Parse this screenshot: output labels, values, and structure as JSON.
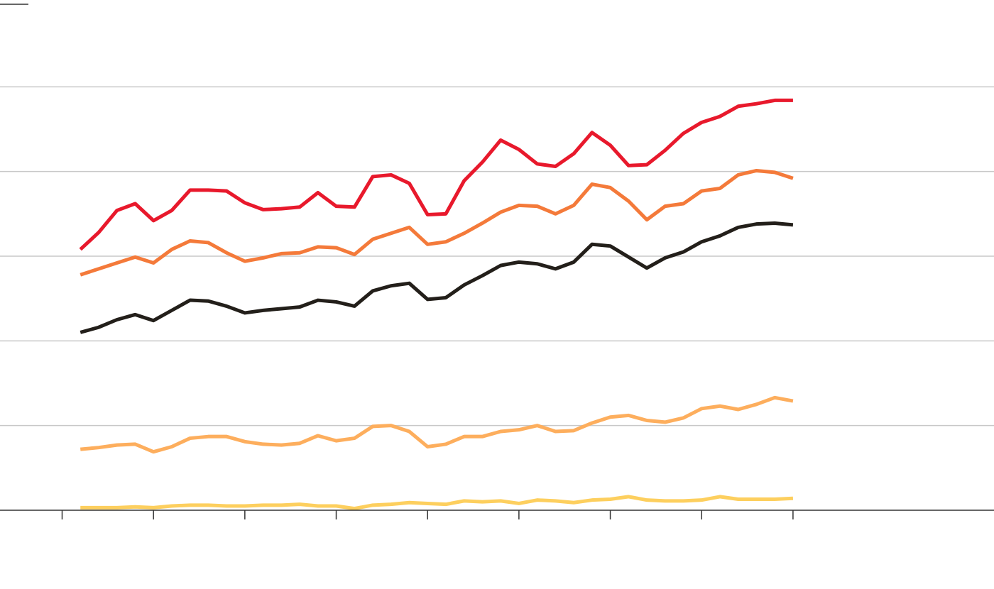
{
  "chart_data": {
    "type": "line",
    "x": [
      1,
      2,
      3,
      4,
      5,
      6,
      7,
      8,
      9,
      10,
      11,
      12,
      13,
      14,
      15,
      16,
      17,
      18,
      19,
      20,
      21,
      22,
      23,
      24,
      25,
      26,
      27,
      28,
      29,
      30,
      31,
      32,
      33,
      34,
      35,
      36,
      37,
      38,
      39,
      40
    ],
    "xlim": [
      -3.4,
      51
    ],
    "xticks": [
      0,
      5,
      10,
      15,
      20,
      25,
      30,
      35,
      40
    ],
    "ylim": [
      0,
      6
    ],
    "yticks": [
      0,
      1,
      2,
      3,
      4,
      5
    ],
    "grid": true,
    "series": [
      {
        "color": "#e8192c",
        "values": [
          3.08,
          3.28,
          3.54,
          3.62,
          3.42,
          3.54,
          3.78,
          3.78,
          3.77,
          3.63,
          3.55,
          3.56,
          3.58,
          3.75,
          3.59,
          3.58,
          3.94,
          3.96,
          3.86,
          3.49,
          3.5,
          3.89,
          4.11,
          4.37,
          4.26,
          4.09,
          4.06,
          4.21,
          4.46,
          4.31,
          4.07,
          4.08,
          4.25,
          4.45,
          4.58,
          4.65,
          4.77,
          4.8,
          4.84,
          4.84
        ]
      },
      {
        "color": "#f47a3a",
        "values": [
          2.78,
          2.85,
          2.92,
          2.99,
          2.92,
          3.08,
          3.18,
          3.16,
          3.04,
          2.94,
          2.98,
          3.03,
          3.04,
          3.11,
          3.1,
          3.02,
          3.2,
          3.27,
          3.34,
          3.14,
          3.17,
          3.27,
          3.39,
          3.52,
          3.6,
          3.59,
          3.5,
          3.6,
          3.85,
          3.81,
          3.65,
          3.43,
          3.59,
          3.62,
          3.77,
          3.8,
          3.96,
          4.01,
          3.99,
          3.92
        ]
      },
      {
        "color": "#231f1a",
        "values": [
          2.1,
          2.16,
          2.25,
          2.31,
          2.24,
          2.36,
          2.48,
          2.47,
          2.41,
          2.33,
          2.36,
          2.38,
          2.4,
          2.48,
          2.46,
          2.41,
          2.59,
          2.65,
          2.68,
          2.49,
          2.51,
          2.66,
          2.77,
          2.89,
          2.93,
          2.91,
          2.85,
          2.93,
          3.14,
          3.12,
          2.99,
          2.86,
          2.98,
          3.05,
          3.17,
          3.24,
          3.34,
          3.38,
          3.39,
          3.37
        ]
      },
      {
        "color": "#fdae5d",
        "values": [
          0.72,
          0.74,
          0.77,
          0.78,
          0.69,
          0.75,
          0.85,
          0.87,
          0.87,
          0.81,
          0.78,
          0.77,
          0.79,
          0.88,
          0.82,
          0.85,
          0.99,
          1.0,
          0.93,
          0.75,
          0.78,
          0.87,
          0.87,
          0.93,
          0.95,
          1.0,
          0.93,
          0.94,
          1.03,
          1.1,
          1.12,
          1.06,
          1.04,
          1.09,
          1.2,
          1.23,
          1.19,
          1.25,
          1.33,
          1.29
        ]
      },
      {
        "color": "#fdcf5e",
        "values": [
          0.03,
          0.03,
          0.03,
          0.04,
          0.03,
          0.05,
          0.06,
          0.06,
          0.05,
          0.05,
          0.06,
          0.06,
          0.07,
          0.05,
          0.05,
          0.02,
          0.06,
          0.07,
          0.09,
          0.08,
          0.07,
          0.11,
          0.1,
          0.11,
          0.08,
          0.12,
          0.11,
          0.09,
          0.12,
          0.13,
          0.16,
          0.12,
          0.11,
          0.11,
          0.12,
          0.16,
          0.13,
          0.13,
          0.13,
          0.14
        ]
      }
    ]
  }
}
